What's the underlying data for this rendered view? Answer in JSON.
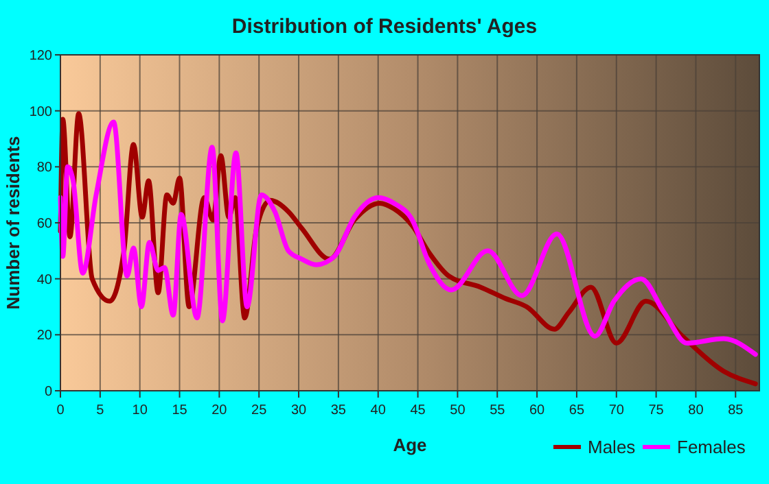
{
  "chart_data": {
    "type": "line",
    "title": "Distribution of Residents' Ages",
    "xlabel": "Age",
    "ylabel": "Number of residents",
    "xlim": [
      0,
      88
    ],
    "ylim": [
      0,
      120
    ],
    "xticks": [
      0,
      5,
      10,
      15,
      20,
      25,
      30,
      35,
      40,
      45,
      50,
      55,
      60,
      65,
      70,
      75,
      80,
      85
    ],
    "yticks": [
      0,
      20,
      40,
      60,
      80,
      100,
      120
    ],
    "grid": true,
    "legend": "bottom right",
    "line_style": "solid",
    "series": [
      {
        "name": "Males",
        "color": "#a00000",
        "x": [
          0,
          0.3,
          1.2,
          2.3,
          4,
          6.2,
          8,
          9.2,
          10.3,
          11.1,
          12.3,
          13.4,
          14.2,
          15,
          16.2,
          18.1,
          19.2,
          20.2,
          21.2,
          22,
          23.2,
          24.7,
          26.4,
          28.7,
          30.4,
          33.9,
          37,
          40.2,
          42,
          44.3,
          46.5,
          48.9,
          52.9,
          56,
          58.7,
          62.2,
          64,
          66.8,
          70,
          73.7,
          78.3,
          83.5,
          87.5
        ],
        "values": [
          57,
          97,
          55,
          99,
          40,
          32,
          50,
          88,
          62,
          75,
          35,
          70,
          67,
          76,
          30,
          69,
          61,
          84,
          62,
          69,
          26,
          58,
          68,
          64,
          58,
          47,
          61,
          67,
          65,
          59,
          49,
          41,
          37,
          33,
          30,
          22,
          28,
          37,
          17,
          32,
          19.5,
          7,
          2.5
        ]
      },
      {
        "name": "Females",
        "color": "#ff00ff",
        "x": [
          0,
          0.3,
          0.9,
          1.6,
          2.8,
          4.5,
          6.7,
          8.4,
          9.2,
          10.2,
          11.2,
          12.3,
          13.1,
          14.2,
          15.2,
          17.2,
          19.1,
          20.4,
          22.1,
          23.5,
          25.3,
          27,
          28.7,
          30.4,
          32.2,
          34.5,
          37,
          40,
          42,
          44.3,
          46.5,
          49.2,
          53.8,
          58.1,
          62.5,
          67.3,
          69.7,
          73.1,
          76,
          78.9,
          83.5,
          87.5
        ],
        "values": [
          69,
          48,
          80,
          75,
          42,
          70,
          96,
          41,
          51,
          30,
          53,
          43,
          44,
          27,
          63,
          26,
          87,
          25,
          85,
          30,
          70,
          64,
          50,
          47,
          45,
          48,
          62,
          69,
          67,
          61,
          45,
          36,
          50,
          34,
          56,
          19.5,
          32,
          40,
          28,
          17,
          18.6,
          13
        ]
      }
    ]
  }
}
